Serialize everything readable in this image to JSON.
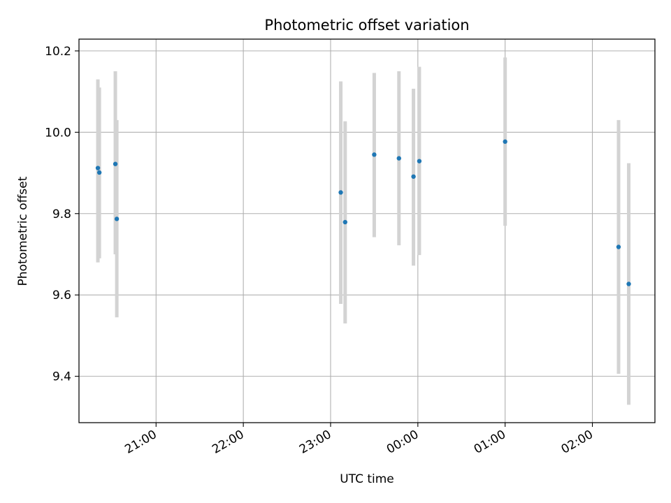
{
  "chart_data": {
    "type": "scatter",
    "title": "Photometric offset variation",
    "xlabel": "UTC time",
    "ylabel": "Photometric offset",
    "x_axis_kind": "time",
    "xlim": [
      "20:07",
      "02:43"
    ],
    "ylim": [
      9.286,
      10.229
    ],
    "grid": true,
    "x_ticks": [
      "21:00",
      "22:00",
      "23:00",
      "00:00",
      "01:00",
      "02:00"
    ],
    "y_ticks": [
      "9.4",
      "9.6",
      "9.8",
      "10.0",
      "10.2"
    ],
    "y_tick_values": [
      9.4,
      9.6,
      9.8,
      10.0,
      10.2
    ],
    "marker_color": "#1f77b4",
    "errorbar_color": "#d3d3d3",
    "series": [
      {
        "points": [
          {
            "x": "20:20",
            "y": 9.912,
            "err_low": 9.68,
            "err_high": 10.13
          },
          {
            "x": "20:21",
            "y": 9.901,
            "err_low": 9.69,
            "err_high": 10.11
          },
          {
            "x": "20:32",
            "y": 9.922,
            "err_low": 9.7,
            "err_high": 10.15
          },
          {
            "x": "20:33",
            "y": 9.787,
            "err_low": 9.545,
            "err_high": 10.03
          },
          {
            "x": "23:07",
            "y": 9.852,
            "err_low": 9.578,
            "err_high": 10.125
          },
          {
            "x": "23:10",
            "y": 9.779,
            "err_low": 9.53,
            "err_high": 10.027
          },
          {
            "x": "23:30",
            "y": 9.945,
            "err_low": 9.742,
            "err_high": 10.146
          },
          {
            "x": "23:47",
            "y": 9.936,
            "err_low": 9.722,
            "err_high": 10.15
          },
          {
            "x": "23:57",
            "y": 9.891,
            "err_low": 9.672,
            "err_high": 10.107
          },
          {
            "x": "00:01",
            "y": 9.929,
            "err_low": 9.698,
            "err_high": 10.161
          },
          {
            "x": "01:00",
            "y": 9.977,
            "err_low": 9.77,
            "err_high": 10.184
          },
          {
            "x": "02:18",
            "y": 9.718,
            "err_low": 9.406,
            "err_high": 10.03
          },
          {
            "x": "02:25",
            "y": 9.627,
            "err_low": 9.33,
            "err_high": 9.924
          }
        ]
      }
    ]
  }
}
